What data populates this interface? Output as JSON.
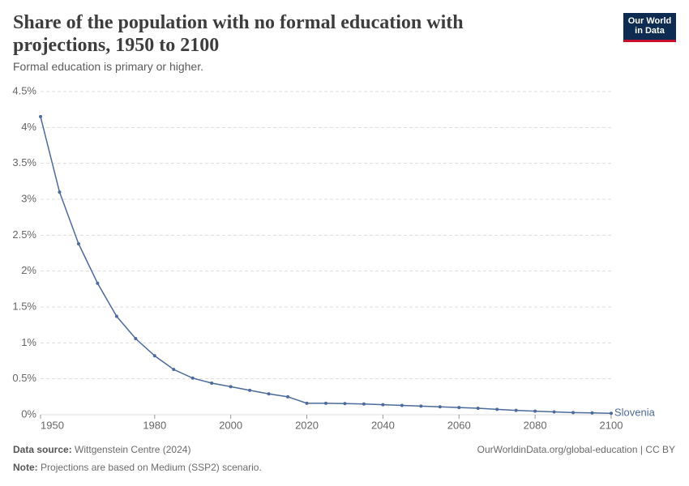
{
  "chart_data": {
    "type": "line",
    "title": "Share of the population with no formal education with projections, 1950 to 2100",
    "subtitle": "Formal education is primary or higher.",
    "logo": [
      "Our World",
      "in Data"
    ],
    "source_label": "Data source:",
    "source": "Wittgenstein Centre (2024)",
    "url": "OurWorldinData.org/global-education | CC BY",
    "note_label": "Note:",
    "note": "Projections are based on Medium (SSP2) scenario.",
    "x": [
      1950,
      1955,
      1960,
      1965,
      1970,
      1975,
      1980,
      1985,
      1990,
      1995,
      2000,
      2005,
      2010,
      2015,
      2020,
      2025,
      2030,
      2035,
      2040,
      2045,
      2050,
      2055,
      2060,
      2065,
      2070,
      2075,
      2080,
      2085,
      2090,
      2095,
      2100
    ],
    "series": [
      {
        "name": "Slovenia",
        "color": "#4c6a9c",
        "values": [
          4.15,
          3.1,
          2.38,
          1.83,
          1.37,
          1.06,
          0.82,
          0.63,
          0.51,
          0.44,
          0.39,
          0.34,
          0.29,
          0.25,
          0.16,
          0.16,
          0.155,
          0.15,
          0.14,
          0.13,
          0.12,
          0.11,
          0.1,
          0.09,
          0.075,
          0.06,
          0.05,
          0.04,
          0.03,
          0.025,
          0.02
        ]
      }
    ],
    "xlim": [
      1950,
      2100
    ],
    "xticks": [
      1950,
      1980,
      2000,
      2020,
      2040,
      2060,
      2080,
      2100
    ],
    "ylim": [
      0,
      4.5
    ],
    "yticks": [
      {
        "value": 0,
        "label": "0%"
      },
      {
        "value": 0.5,
        "label": "0.5%"
      },
      {
        "value": 1,
        "label": "1%"
      },
      {
        "value": 1.5,
        "label": "1.5%"
      },
      {
        "value": 2,
        "label": "2%"
      },
      {
        "value": 2.5,
        "label": "2.5%"
      },
      {
        "value": 3,
        "label": "3%"
      },
      {
        "value": 3.5,
        "label": "3.5%"
      },
      {
        "value": 4,
        "label": "4%"
      },
      {
        "value": 4.5,
        "label": "4.5%"
      }
    ],
    "grid": true
  }
}
